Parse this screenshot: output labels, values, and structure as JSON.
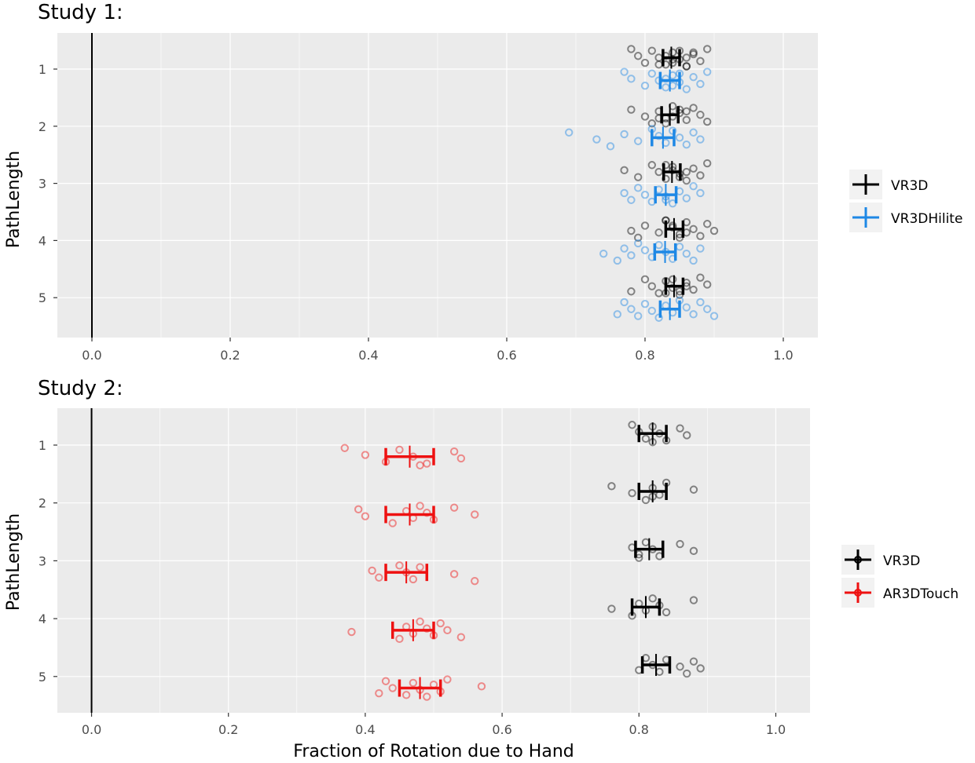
{
  "colors": {
    "panel_bg": "#ebebeb",
    "grid": "#ffffff",
    "tick_text": "#4d4d4d",
    "VR3D": "#000000",
    "VR3DHilite": "#1e88e5",
    "AR3DTouch": "#ee1111"
  },
  "chart_data": [
    {
      "type": "scatter",
      "title": "Study 1:",
      "xlabel": "",
      "ylabel": "PathLength",
      "xlim": [
        -0.05,
        1.05
      ],
      "xticks": [
        "0.0",
        "0.2",
        "0.4",
        "0.6",
        "0.8",
        "1.0"
      ],
      "categories": [
        "1",
        "2",
        "3",
        "4",
        "5"
      ],
      "reference_line_x": 0,
      "legend": [
        "VR3D",
        "VR3DHilite"
      ],
      "series": [
        {
          "name": "VR3D",
          "offset": -0.2,
          "means": [
            0.838,
            0.836,
            0.839,
            0.842,
            0.842
          ],
          "ci_low": [
            0.826,
            0.824,
            0.827,
            0.83,
            0.83
          ],
          "ci_high": [
            0.85,
            0.848,
            0.851,
            0.855,
            0.855
          ],
          "points": [
            [
              0.78,
              0.79,
              0.8,
              0.81,
              0.82,
              0.83,
              0.84,
              0.85,
              0.86,
              0.87,
              0.88,
              0.89,
              0.83,
              0.84,
              0.85,
              0.86,
              0.82,
              0.87,
              0.84,
              0.86
            ],
            [
              0.78,
              0.8,
              0.81,
              0.82,
              0.83,
              0.84,
              0.85,
              0.86,
              0.87,
              0.88,
              0.89,
              0.85,
              0.84,
              0.83,
              0.86,
              0.82
            ],
            [
              0.77,
              0.79,
              0.81,
              0.82,
              0.83,
              0.84,
              0.85,
              0.86,
              0.87,
              0.88,
              0.89,
              0.84,
              0.85,
              0.83,
              0.86
            ],
            [
              0.78,
              0.79,
              0.8,
              0.82,
              0.83,
              0.84,
              0.85,
              0.86,
              0.87,
              0.88,
              0.89,
              0.9,
              0.85,
              0.84,
              0.86,
              0.83
            ],
            [
              0.78,
              0.8,
              0.81,
              0.82,
              0.83,
              0.84,
              0.85,
              0.86,
              0.87,
              0.88,
              0.89,
              0.85,
              0.84,
              0.86,
              0.83
            ]
          ]
        },
        {
          "name": "VR3DHilite",
          "offset": 0.2,
          "means": [
            0.836,
            0.826,
            0.83,
            0.829,
            0.836
          ],
          "ci_low": [
            0.822,
            0.81,
            0.815,
            0.814,
            0.822
          ],
          "ci_high": [
            0.85,
            0.842,
            0.845,
            0.844,
            0.85
          ],
          "points": [
            [
              0.77,
              0.78,
              0.8,
              0.81,
              0.82,
              0.83,
              0.84,
              0.85,
              0.86,
              0.87,
              0.88,
              0.89,
              0.83,
              0.84,
              0.85
            ],
            [
              0.69,
              0.73,
              0.75,
              0.77,
              0.79,
              0.81,
              0.82,
              0.83,
              0.84,
              0.85,
              0.86,
              0.87,
              0.88
            ],
            [
              0.77,
              0.78,
              0.79,
              0.8,
              0.81,
              0.82,
              0.83,
              0.84,
              0.85,
              0.86,
              0.87,
              0.88,
              0.83
            ],
            [
              0.74,
              0.76,
              0.77,
              0.78,
              0.79,
              0.8,
              0.81,
              0.82,
              0.83,
              0.84,
              0.85,
              0.86,
              0.87,
              0.88
            ],
            [
              0.76,
              0.77,
              0.78,
              0.79,
              0.8,
              0.81,
              0.82,
              0.83,
              0.84,
              0.85,
              0.86,
              0.87,
              0.88,
              0.89,
              0.9
            ]
          ]
        }
      ]
    },
    {
      "type": "scatter",
      "title": "Study 2:",
      "xlabel": "Fraction of Rotation due to Hand",
      "ylabel": "PathLength",
      "xlim": [
        -0.05,
        1.05
      ],
      "xticks": [
        "0.0",
        "0.2",
        "0.4",
        "0.6",
        "0.8",
        "1.0"
      ],
      "categories": [
        "1",
        "2",
        "3",
        "4",
        "5"
      ],
      "reference_line_x": 0,
      "legend": [
        "VR3D",
        "AR3DTouch"
      ],
      "series": [
        {
          "name": "VR3D",
          "offset": -0.2,
          "means": [
            0.82,
            0.82,
            0.815,
            0.81,
            0.825
          ],
          "ci_low": [
            0.8,
            0.8,
            0.795,
            0.79,
            0.805
          ],
          "ci_high": [
            0.84,
            0.84,
            0.835,
            0.83,
            0.845
          ],
          "points": [
            [
              0.79,
              0.8,
              0.81,
              0.82,
              0.83,
              0.84,
              0.86,
              0.87,
              0.82
            ],
            [
              0.76,
              0.79,
              0.81,
              0.82,
              0.83,
              0.84,
              0.88,
              0.82
            ],
            [
              0.79,
              0.8,
              0.81,
              0.82,
              0.83,
              0.86,
              0.88,
              0.8
            ],
            [
              0.76,
              0.79,
              0.8,
              0.81,
              0.82,
              0.83,
              0.84,
              0.88
            ],
            [
              0.8,
              0.81,
              0.82,
              0.83,
              0.84,
              0.86,
              0.87,
              0.88,
              0.89
            ]
          ]
        },
        {
          "name": "AR3DTouch",
          "offset": 0.2,
          "means": [
            0.465,
            0.465,
            0.46,
            0.47,
            0.48
          ],
          "ci_low": [
            0.43,
            0.43,
            0.43,
            0.44,
            0.45
          ],
          "ci_high": [
            0.5,
            0.5,
            0.49,
            0.5,
            0.51
          ],
          "points": [
            [
              0.37,
              0.4,
              0.43,
              0.45,
              0.47,
              0.49,
              0.53,
              0.54,
              0.48
            ],
            [
              0.39,
              0.4,
              0.44,
              0.46,
              0.47,
              0.48,
              0.49,
              0.5,
              0.53,
              0.56
            ],
            [
              0.41,
              0.42,
              0.45,
              0.46,
              0.47,
              0.48,
              0.53,
              0.56
            ],
            [
              0.38,
              0.45,
              0.46,
              0.47,
              0.48,
              0.49,
              0.5,
              0.51,
              0.52,
              0.54
            ],
            [
              0.42,
              0.43,
              0.44,
              0.46,
              0.47,
              0.48,
              0.49,
              0.5,
              0.51,
              0.52,
              0.57
            ]
          ]
        }
      ]
    }
  ]
}
